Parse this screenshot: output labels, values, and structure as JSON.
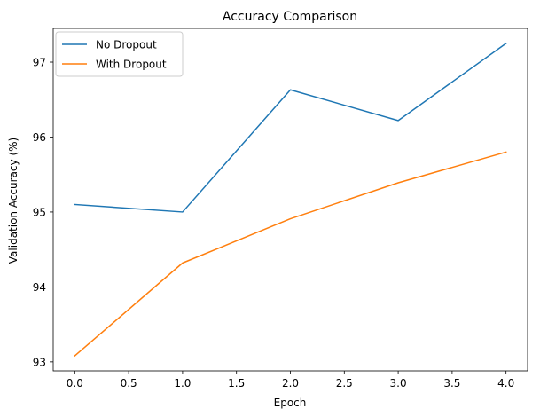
{
  "chart_data": {
    "type": "line",
    "title": "Accuracy Comparison",
    "xlabel": "Epoch",
    "ylabel": "Validation Accuracy (%)",
    "xlim": [
      -0.2,
      4.2
    ],
    "ylim": [
      92.88,
      97.45
    ],
    "x_ticks": [
      0.0,
      0.5,
      1.0,
      1.5,
      2.0,
      2.5,
      3.0,
      3.5,
      4.0
    ],
    "x_tick_labels": [
      "0.0",
      "0.5",
      "1.0",
      "1.5",
      "2.0",
      "2.5",
      "3.0",
      "3.5",
      "4.0"
    ],
    "y_ticks": [
      93,
      94,
      95,
      96,
      97
    ],
    "y_tick_labels": [
      "93",
      "94",
      "95",
      "96",
      "97"
    ],
    "grid": false,
    "legend_position": "top-left",
    "x": [
      0,
      1,
      2,
      3,
      4
    ],
    "series": [
      {
        "name": "No Dropout",
        "color": "#1f77b4",
        "values": [
          95.1,
          95.0,
          96.63,
          96.22,
          97.25
        ]
      },
      {
        "name": "With Dropout",
        "color": "#ff7f0e",
        "values": [
          93.08,
          94.32,
          94.91,
          95.39,
          95.8
        ]
      }
    ]
  }
}
